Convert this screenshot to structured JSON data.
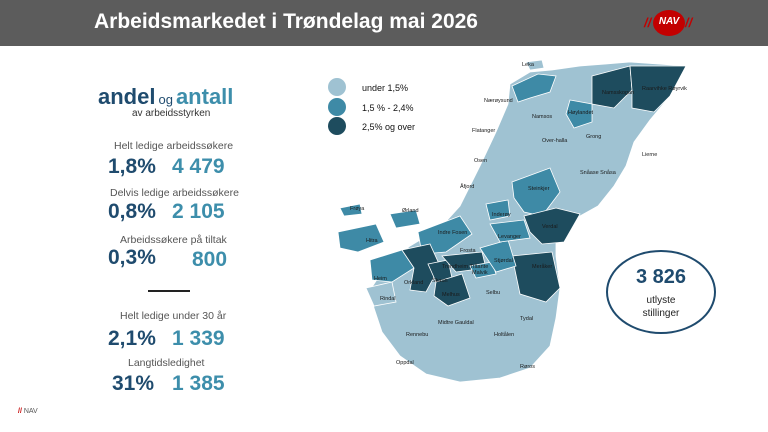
{
  "header": {
    "title": "Arbeidsmarkedet i Trøndelag mai 2026",
    "logo_text": "NAV",
    "logo_slashes": "//"
  },
  "heading": {
    "andel": "andel",
    "og": "og",
    "antall": "antall",
    "sub": "av arbeidsstyrken"
  },
  "stats": [
    {
      "label": "Helt ledige arbeidssøkere",
      "pct": "1,8%",
      "num": "4 479"
    },
    {
      "label": "Delvis ledige arbeidssøkere",
      "pct": "0,8%",
      "num": "2 105"
    },
    {
      "label": "Arbeidssøkere på tiltak",
      "pct": "0,3%",
      "num": "800"
    },
    {
      "label": "Helt ledige under 30 år",
      "pct": "2,1%",
      "num": "1 339"
    },
    {
      "label": "Langtidsledighet",
      "pct": "31%",
      "num": "1 385"
    }
  ],
  "legend": [
    {
      "label": "under 1,5%",
      "color": "#9fc2d2"
    },
    {
      "label": "1,5 % - 2,4%",
      "color": "#3e8aa6"
    },
    {
      "label": "2,5% og over",
      "color": "#1e4c5e"
    }
  ],
  "map": {
    "land_color": "#9fc2d2",
    "municipalities": [
      "Leka",
      "Nærøysund",
      "Namsos",
      "Namsskogan",
      "Raarvihke Røyrvik",
      "Høylandet",
      "Flatanger",
      "Over-halla",
      "Grong",
      "Lierne",
      "Osen",
      "Snåase Snåsa",
      "Åfjord",
      "Steinkjer",
      "Frøya",
      "Ørland",
      "Inderøy",
      "Verdal",
      "Hitra",
      "Indre Fosen",
      "Levanger",
      "Frosta",
      "Stjørdal",
      "Trondheim Tråante",
      "Malvik",
      "Meråker",
      "Heim",
      "Orkland",
      "Skaun",
      "Rindal",
      "Melhus",
      "Selbu",
      "Tydal",
      "Rennebu",
      "Midtre Gauldal",
      "Holtålen",
      "Oppdal",
      "Røros"
    ]
  },
  "vacancies": {
    "number": "3 826",
    "line1": "utlyste",
    "line2": "stillinger"
  },
  "footer": {
    "slashes": "//",
    "text": "NAV"
  }
}
